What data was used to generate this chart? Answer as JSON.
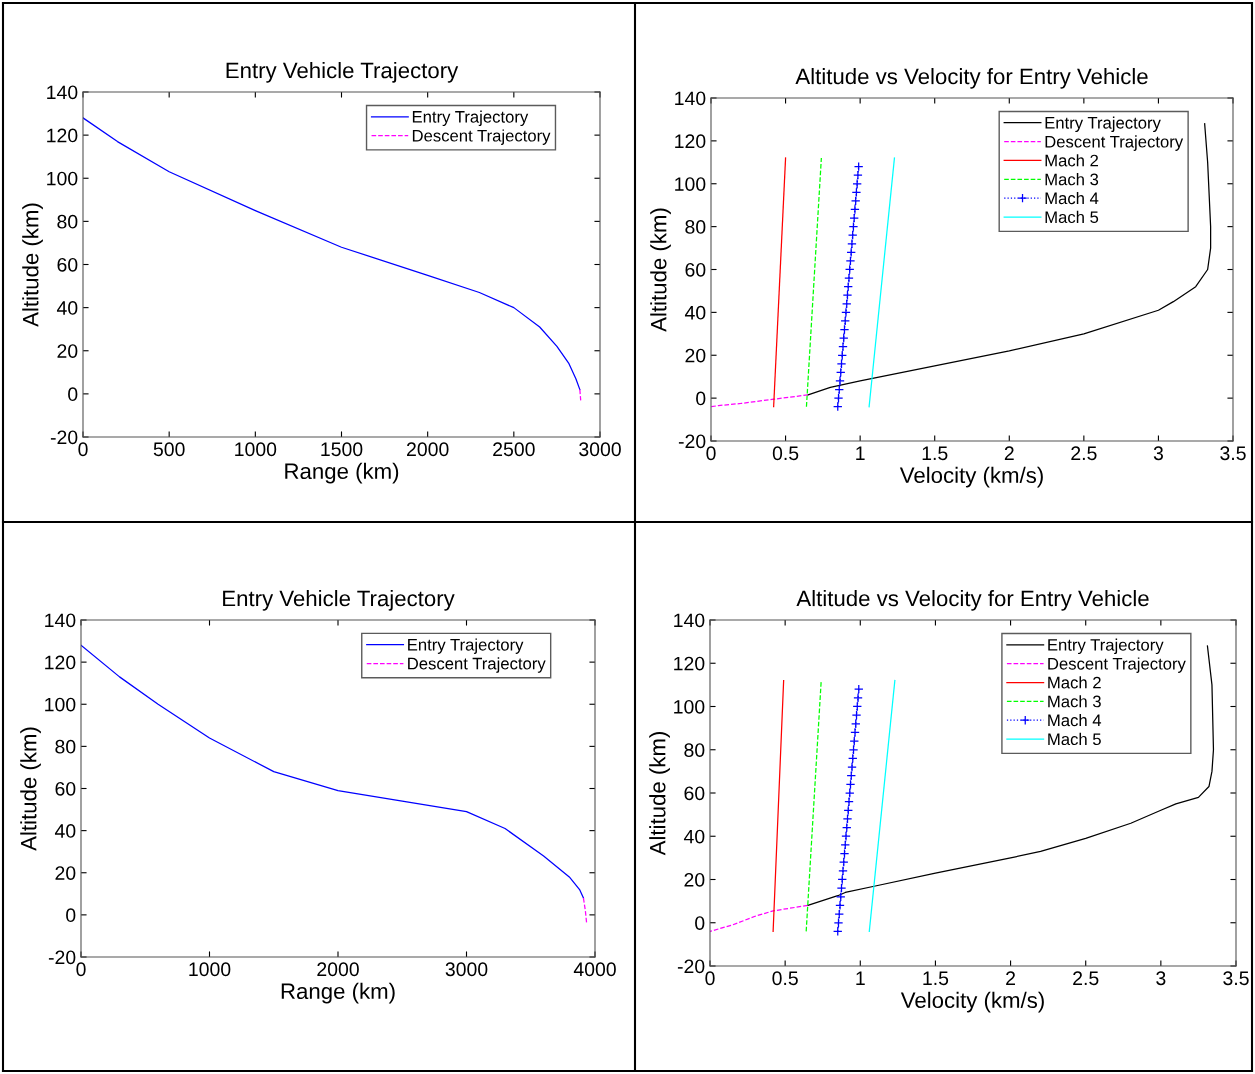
{
  "chart_data": [
    {
      "type": "line",
      "title": "Entry Vehicle Trajectory",
      "xlabel": "Range (km)",
      "ylabel": "Altitude (km)",
      "xlim": [
        0,
        3000
      ],
      "xticks": [
        0,
        500,
        1000,
        1500,
        2000,
        2500,
        3000
      ],
      "ylim": [
        -20,
        140
      ],
      "yticks": [
        -20,
        0,
        20,
        40,
        60,
        80,
        100,
        120,
        140
      ],
      "grid": false,
      "legend": "top right",
      "series": [
        {
          "name": "Entry Trajectory",
          "color": "#0000ff",
          "line_style": "solid",
          "x": [
            0,
            200,
            500,
            1000,
            1500,
            2000,
            2300,
            2500,
            2650,
            2750,
            2820,
            2860,
            2883
          ],
          "values": [
            128,
            117,
            103,
            85,
            68,
            55,
            47,
            40,
            31,
            22,
            14,
            7,
            2
          ]
        },
        {
          "name": "Descent Trajectory",
          "color": "#ff00ff",
          "line_style": "dashed",
          "x": [
            2883,
            2888
          ],
          "values": [
            2,
            -3
          ]
        }
      ]
    },
    {
      "type": "line",
      "title": "Altitude vs Velocity for Entry Vehicle",
      "xlabel": "Velocity (km/s)",
      "ylabel": "Altitude (km)",
      "xlim": [
        0,
        3.5
      ],
      "xticks": [
        0,
        0.5,
        1,
        1.5,
        2,
        2.5,
        3,
        3.5
      ],
      "ylim": [
        -20,
        140
      ],
      "yticks": [
        -20,
        0,
        20,
        40,
        60,
        80,
        100,
        120,
        140
      ],
      "grid": false,
      "legend": "top right",
      "series": [
        {
          "name": "Entry Trajectory",
          "color": "#000000",
          "line_style": "solid",
          "x": [
            3.31,
            3.33,
            3.35,
            3.35,
            3.33,
            3.25,
            3.1,
            3.0,
            2.5,
            2.0,
            1.5,
            1.0,
            0.8,
            0.65
          ],
          "values": [
            128,
            110,
            80,
            70,
            60,
            52,
            45,
            41,
            30,
            22,
            15,
            8,
            5,
            1.5
          ]
        },
        {
          "name": "Descent Trajectory",
          "color": "#ff00ff",
          "line_style": "dashed",
          "x": [
            0.65,
            0.42,
            0.2,
            0.05,
            0
          ],
          "values": [
            1.5,
            -0.5,
            -2.5,
            -3.5,
            -4
          ]
        },
        {
          "name": "Mach 2",
          "color": "#ff0000",
          "line_style": "solid",
          "x": [
            0.42,
            0.5
          ],
          "values": [
            -4,
            112
          ]
        },
        {
          "name": "Mach 3",
          "color": "#00ff00",
          "line_style": "dashed",
          "x": [
            0.64,
            0.74
          ],
          "values": [
            -4,
            112
          ]
        },
        {
          "name": "Mach 4",
          "color": "#0000ff",
          "line_style": "dotted",
          "marker": "cross",
          "x": [
            0.85,
            0.855,
            0.86,
            0.865,
            0.87,
            0.875,
            0.88,
            0.885,
            0.89,
            0.895,
            0.9,
            0.905,
            0.91,
            0.915,
            0.92,
            0.925,
            0.93,
            0.935,
            0.94,
            0.945,
            0.95,
            0.955,
            0.96,
            0.965,
            0.97,
            0.975,
            0.98,
            0.985,
            0.99
          ],
          "values": [
            -4,
            0,
            4,
            8,
            12,
            16,
            20,
            24,
            28,
            32,
            36,
            40,
            44,
            48,
            52,
            56,
            60,
            64,
            68,
            72,
            76,
            80,
            84,
            88,
            92,
            96,
            100,
            104,
            108
          ]
        },
        {
          "name": "Mach 5",
          "color": "#00ffff",
          "line_style": "solid",
          "x": [
            1.06,
            1.23
          ],
          "values": [
            -4,
            112
          ]
        }
      ]
    },
    {
      "type": "line",
      "title": "Entry Vehicle Trajectory",
      "xlabel": "Range (km)",
      "ylabel": "Altitude (km)",
      "xlim": [
        0,
        4000
      ],
      "xticks": [
        0,
        1000,
        2000,
        3000,
        4000
      ],
      "ylim": [
        -20,
        140
      ],
      "yticks": [
        -20,
        0,
        20,
        40,
        60,
        80,
        100,
        120,
        140
      ],
      "grid": false,
      "legend": "top right",
      "series": [
        {
          "name": "Entry Trajectory",
          "color": "#0000ff",
          "line_style": "solid",
          "x": [
            0,
            300,
            600,
            1000,
            1500,
            2000,
            2500,
            3000,
            3300,
            3600,
            3800,
            3880,
            3910
          ],
          "values": [
            128,
            113,
            100,
            84,
            68,
            59,
            54,
            49,
            41,
            28,
            18,
            12,
            8
          ]
        },
        {
          "name": "Descent Trajectory",
          "color": "#ff00ff",
          "line_style": "dashed",
          "x": [
            3910,
            3925,
            3935
          ],
          "values": [
            8,
            2,
            -4
          ]
        }
      ]
    },
    {
      "type": "line",
      "title": "Altitude vs Velocity for Entry Vehicle",
      "xlabel": "Velocity (km/s)",
      "ylabel": "Altitude (km)",
      "xlim": [
        0,
        3.5
      ],
      "xticks": [
        0,
        0.5,
        1,
        1.5,
        2,
        2.5,
        3,
        3.5
      ],
      "ylim": [
        -20,
        140
      ],
      "yticks": [
        -20,
        0,
        20,
        40,
        60,
        80,
        100,
        120,
        140
      ],
      "grid": false,
      "legend": "top right",
      "series": [
        {
          "name": "Entry Trajectory",
          "color": "#000000",
          "line_style": "solid",
          "x": [
            3.31,
            3.34,
            3.35,
            3.34,
            3.32,
            3.25,
            3.1,
            3.0,
            2.8,
            2.5,
            2.2,
            2.0,
            1.5,
            1.1,
            0.9,
            0.85,
            0.65
          ],
          "values": [
            128,
            110,
            80,
            70,
            63,
            58,
            55,
            52,
            46,
            39,
            33,
            30,
            23,
            17,
            14,
            12.5,
            8
          ]
        },
        {
          "name": "Descent Trajectory",
          "color": "#ff00ff",
          "line_style": "dashed",
          "x": [
            0.65,
            0.42,
            0.3,
            0.15,
            0
          ],
          "values": [
            8,
            5.5,
            3,
            -1,
            -4
          ]
        },
        {
          "name": "Mach 2",
          "color": "#ff0000",
          "line_style": "solid",
          "x": [
            0.42,
            0.49
          ],
          "values": [
            -4,
            112
          ]
        },
        {
          "name": "Mach 3",
          "color": "#00ff00",
          "line_style": "dashed",
          "x": [
            0.64,
            0.74
          ],
          "values": [
            -4,
            112
          ]
        },
        {
          "name": "Mach 4",
          "color": "#0000ff",
          "line_style": "dotted",
          "marker": "cross",
          "x": [
            0.85,
            0.855,
            0.86,
            0.865,
            0.87,
            0.875,
            0.88,
            0.885,
            0.89,
            0.895,
            0.9,
            0.905,
            0.91,
            0.915,
            0.92,
            0.925,
            0.93,
            0.935,
            0.94,
            0.945,
            0.95,
            0.955,
            0.96,
            0.965,
            0.97,
            0.975,
            0.98,
            0.985,
            0.99
          ],
          "values": [
            -4,
            0,
            4,
            8,
            12,
            16,
            20,
            24,
            28,
            32,
            36,
            40,
            44,
            48,
            52,
            56,
            60,
            64,
            68,
            72,
            76,
            80,
            84,
            88,
            92,
            96,
            100,
            104,
            108
          ]
        },
        {
          "name": "Mach 5",
          "color": "#00ffff",
          "line_style": "solid",
          "x": [
            1.06,
            1.23
          ],
          "values": [
            -4,
            112
          ]
        }
      ]
    }
  ]
}
